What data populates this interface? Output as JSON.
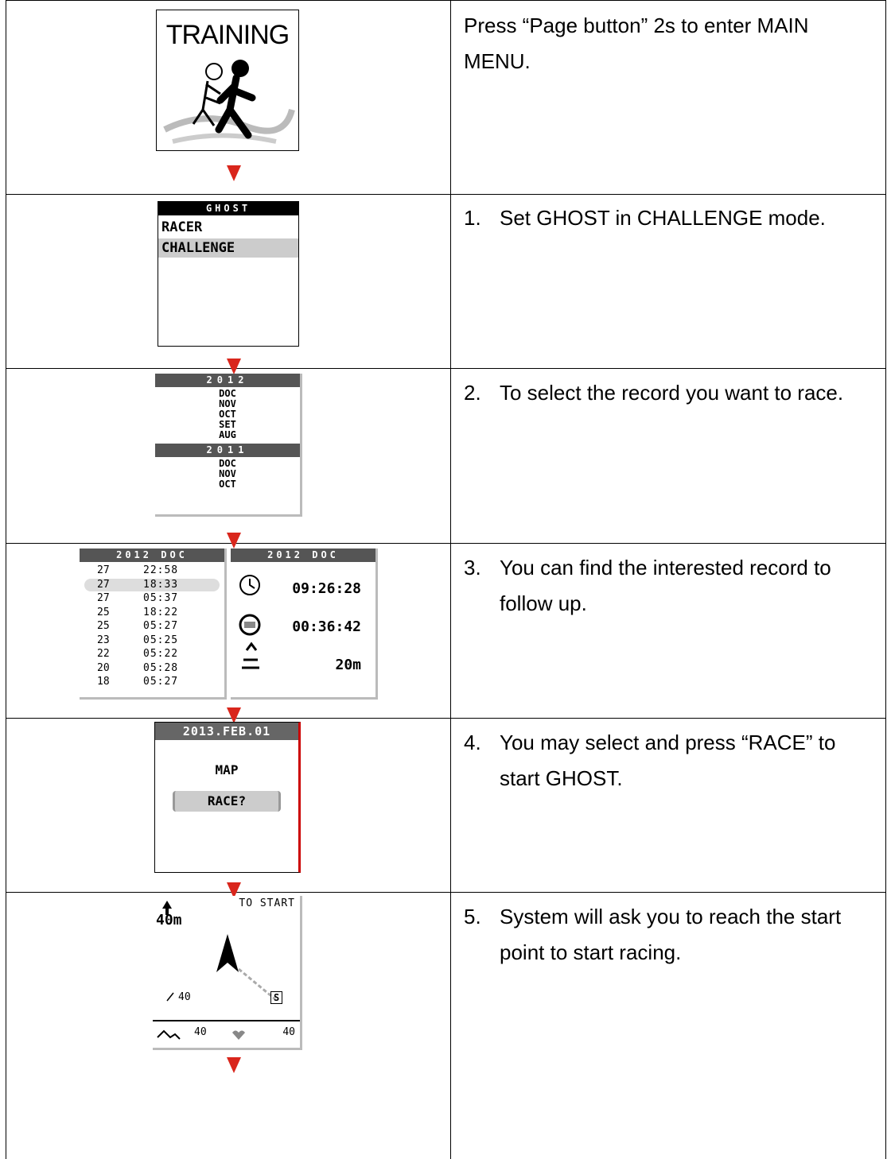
{
  "table": {
    "rows": [
      {
        "screen": {
          "title": "TRAINING"
        },
        "text": "Press “Page button” 2s to enter MAIN MENU."
      },
      {
        "screen": {
          "header": "GHOST",
          "items": [
            "RACER",
            "CHALLENGE"
          ]
        },
        "number": "1.",
        "text": "Set GHOST in CHALLENGE mode."
      },
      {
        "screen": {
          "groups": [
            {
              "year": "2012",
              "months": [
                "DOC",
                "NOV",
                "OCT",
                "SET",
                "AUG"
              ]
            },
            {
              "year": "2011",
              "months": [
                "DOC",
                "NOV",
                "OCT"
              ]
            }
          ]
        },
        "number": "2.",
        "text": "To select the record you want to race."
      },
      {
        "screen": {
          "list_header": "2012 DOC",
          "records": [
            [
              "27",
              "22:58"
            ],
            [
              "27",
              "18:33"
            ],
            [
              "27",
              "05:37"
            ],
            [
              "25",
              "18:22"
            ],
            [
              "25",
              "05:27"
            ],
            [
              "23",
              "05:25"
            ],
            [
              "22",
              "05:22"
            ],
            [
              "20",
              "05:28"
            ],
            [
              "18",
              "05:27"
            ]
          ],
          "detail_header": "2012 DOC",
          "details": [
            "09:26:28",
            "00:36:42",
            "20m"
          ]
        },
        "number": "3.",
        "text": "You can find the interested record to follow up."
      },
      {
        "screen": {
          "header": "2013.FEB.01",
          "items": [
            "MAP",
            "RACE?"
          ]
        },
        "number": "4.",
        "text": "You may select and press “RACE” to start GHOST."
      },
      {
        "screen": {
          "label": "TO START",
          "distance": "40m",
          "slope": "40",
          "marker": "S",
          "footer": [
            "40",
            "40"
          ]
        },
        "number": "5.",
        "text": "System will ask you to reach the start point to start racing."
      }
    ]
  }
}
